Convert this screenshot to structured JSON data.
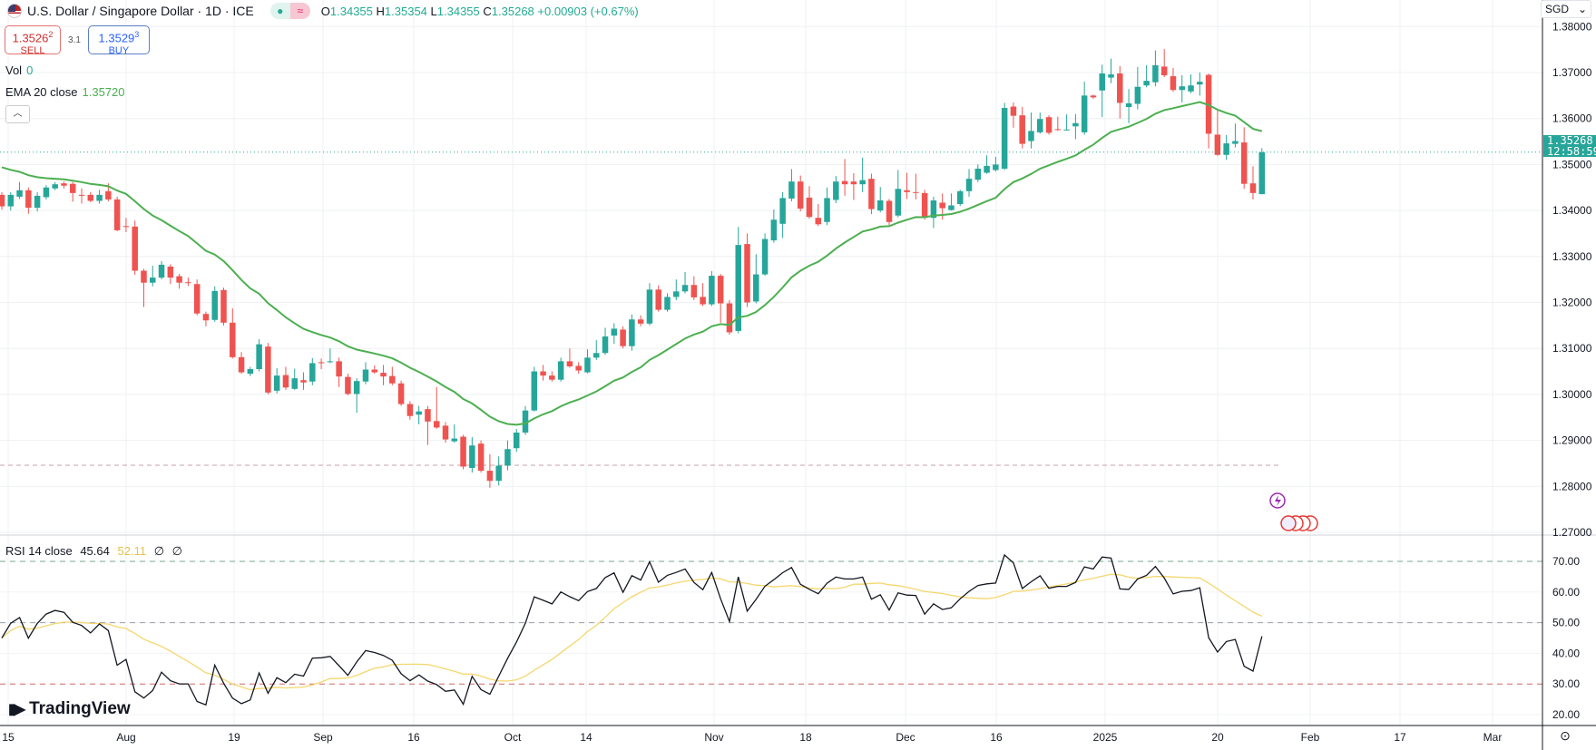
{
  "header": {
    "title": "U.S. Dollar / Singapore Dollar · 1D · ICE",
    "market_status_icon": "green-dot",
    "delay_icon": "≈",
    "ohlc": {
      "o_label": "O",
      "o": "1.34355",
      "h_label": "H",
      "h": "1.35354",
      "l_label": "L",
      "l": "1.34355",
      "c_label": "C",
      "c": "1.35268",
      "change": "+0.00903 (+0.67%)"
    }
  },
  "trade": {
    "sell_price": "1.3526",
    "sell_sup": "2",
    "sell_label": "SELL",
    "spread": "3.1",
    "buy_price": "1.3529",
    "buy_sup": "3",
    "buy_label": "BUY"
  },
  "legend": {
    "vol_label": "Vol",
    "vol_value": "0",
    "ema_label": "EMA 20 close",
    "ema_value": "1.35720",
    "collapse_icon": "chevron-up"
  },
  "rsi_legend": {
    "label": "RSI 14 close",
    "rsi_value": "45.64",
    "ma_value": "52.11",
    "extra1": "∅",
    "extra2": "∅"
  },
  "price_axis": {
    "currency": "SGD",
    "current_price": "1.35268",
    "countdown": "12:58:59"
  },
  "logo": "TradingView",
  "colors": {
    "up": "#26a69a",
    "down": "#ef5350",
    "ema": "#4caf50",
    "rsi": "#131722",
    "rsi_ma": "#f5d76e"
  },
  "chart_data": [
    {
      "type": "candlestick",
      "title": "U.S. Dollar / Singapore Dollar · 1D · ICE",
      "ylim": [
        1.27,
        1.38
      ],
      "yticks": [
        "1.38000",
        "1.37000",
        "1.36000",
        "1.35000",
        "1.34000",
        "1.33000",
        "1.32000",
        "1.31000",
        "1.30000",
        "1.29000",
        "1.28000",
        "1.27000"
      ],
      "xticks": [
        "15",
        "Aug",
        "19",
        "Sep",
        "16",
        "Oct",
        "14",
        "Nov",
        "18",
        "Dec",
        "16",
        "2025",
        "20",
        "Feb",
        "17",
        "Mar"
      ],
      "ohlc": [
        [
          1.3434,
          1.344,
          1.3402,
          1.3409
        ],
        [
          1.3409,
          1.344,
          1.34,
          1.3434
        ],
        [
          1.343,
          1.3462,
          1.3425,
          1.3444
        ],
        [
          1.3444,
          1.345,
          1.3393,
          1.3406
        ],
        [
          1.3406,
          1.344,
          1.3398,
          1.3432
        ],
        [
          1.3429,
          1.3455,
          1.3424,
          1.345
        ],
        [
          1.3448,
          1.3462,
          1.3444,
          1.3457
        ],
        [
          1.3459,
          1.3463,
          1.3448,
          1.3454
        ],
        [
          1.3458,
          1.3462,
          1.3419,
          1.3438
        ],
        [
          1.3434,
          1.3448,
          1.3415,
          1.3433
        ],
        [
          1.3434,
          1.344,
          1.3418,
          1.3421
        ],
        [
          1.3421,
          1.3445,
          1.3415,
          1.3434
        ],
        [
          1.3442,
          1.3459,
          1.342,
          1.3424
        ],
        [
          1.3424,
          1.343,
          1.3355,
          1.3357
        ],
        [
          1.3366,
          1.3384,
          1.3353,
          1.3365
        ],
        [
          1.3365,
          1.3378,
          1.326,
          1.3269
        ],
        [
          1.3269,
          1.3273,
          1.319,
          1.3243
        ],
        [
          1.3243,
          1.328,
          1.3235,
          1.3254
        ],
        [
          1.3254,
          1.329,
          1.325,
          1.3282
        ],
        [
          1.3278,
          1.3283,
          1.324,
          1.3254
        ],
        [
          1.3257,
          1.3262,
          1.323,
          1.3243
        ],
        [
          1.3244,
          1.3254,
          1.3236,
          1.3243
        ],
        [
          1.324,
          1.325,
          1.3172,
          1.3176
        ],
        [
          1.3175,
          1.318,
          1.3148,
          1.3161
        ],
        [
          1.3162,
          1.3235,
          1.3158,
          1.3225
        ],
        [
          1.3227,
          1.3232,
          1.315,
          1.3156
        ],
        [
          1.3156,
          1.3187,
          1.3078,
          1.3081
        ],
        [
          1.3081,
          1.3092,
          1.3045,
          1.3048
        ],
        [
          1.3045,
          1.306,
          1.304,
          1.3055
        ],
        [
          1.3055,
          1.312,
          1.305,
          1.3109
        ],
        [
          1.3104,
          1.3112,
          1.3,
          1.3004
        ],
        [
          1.3008,
          1.3057,
          1.3002,
          1.3041
        ],
        [
          1.3042,
          1.306,
          1.301,
          1.3015
        ],
        [
          1.3012,
          1.3056,
          1.301,
          1.3035
        ],
        [
          1.3031,
          1.3048,
          1.301,
          1.3026
        ],
        [
          1.3028,
          1.3079,
          1.302,
          1.3068
        ],
        [
          1.307,
          1.3078,
          1.3055,
          1.3069
        ],
        [
          1.3072,
          1.31,
          1.3068,
          1.3072
        ],
        [
          1.3072,
          1.308,
          1.3016,
          1.3039
        ],
        [
          1.3038,
          1.3045,
          1.2998,
          1.3001
        ],
        [
          1.3001,
          1.3035,
          1.296,
          1.3029
        ],
        [
          1.3028,
          1.307,
          1.3022,
          1.3054
        ],
        [
          1.3054,
          1.3063,
          1.3045,
          1.3048
        ],
        [
          1.3047,
          1.3064,
          1.302,
          1.3039
        ],
        [
          1.304,
          1.306,
          1.302,
          1.3024
        ],
        [
          1.3024,
          1.303,
          1.2975,
          1.2979
        ],
        [
          1.2979,
          1.2985,
          1.2945,
          1.2953
        ],
        [
          1.2956,
          1.2975,
          1.2935,
          1.2963
        ],
        [
          1.2968,
          1.2975,
          1.289,
          1.2941
        ],
        [
          1.2942,
          1.3016,
          1.2925,
          1.2928
        ],
        [
          1.2932,
          1.294,
          1.2895,
          1.2902
        ],
        [
          1.2898,
          1.2935,
          1.2895,
          1.2904
        ],
        [
          1.2908,
          1.2912,
          1.2837,
          1.2843
        ],
        [
          1.284,
          1.2907,
          1.283,
          1.2889
        ],
        [
          1.2893,
          1.29,
          1.283,
          1.2834
        ],
        [
          1.2834,
          1.287,
          1.2797,
          1.2812
        ],
        [
          1.2812,
          1.2865,
          1.2802,
          1.2845
        ],
        [
          1.2845,
          1.29,
          1.2835,
          1.2881
        ],
        [
          1.2883,
          1.2925,
          1.2875,
          1.2917
        ],
        [
          1.2917,
          1.2975,
          1.2912,
          1.2965
        ],
        [
          1.2965,
          1.306,
          1.2963,
          1.305
        ],
        [
          1.305,
          1.3064,
          1.303,
          1.3041
        ],
        [
          1.3041,
          1.305,
          1.3028,
          1.3032
        ],
        [
          1.3032,
          1.308,
          1.3028,
          1.3072
        ],
        [
          1.3072,
          1.31,
          1.3058,
          1.3061
        ],
        [
          1.3062,
          1.307,
          1.3045,
          1.3052
        ],
        [
          1.3048,
          1.3098,
          1.3046,
          1.308
        ],
        [
          1.308,
          1.3118,
          1.3075,
          1.309
        ],
        [
          1.309,
          1.3145,
          1.3086,
          1.3126
        ],
        [
          1.3128,
          1.3155,
          1.311,
          1.3143
        ],
        [
          1.3141,
          1.3148,
          1.31,
          1.3105
        ],
        [
          1.3105,
          1.3174,
          1.3095,
          1.3163
        ],
        [
          1.3163,
          1.3172,
          1.3148,
          1.3154
        ],
        [
          1.3154,
          1.3242,
          1.315,
          1.3228
        ],
        [
          1.3228,
          1.3237,
          1.318,
          1.3184
        ],
        [
          1.3184,
          1.322,
          1.318,
          1.3212
        ],
        [
          1.3212,
          1.325,
          1.3205,
          1.3224
        ],
        [
          1.3224,
          1.3266,
          1.322,
          1.3238
        ],
        [
          1.3238,
          1.3257,
          1.3205,
          1.3211
        ],
        [
          1.3212,
          1.3242,
          1.3192,
          1.3196
        ],
        [
          1.3196,
          1.3268,
          1.3192,
          1.3258
        ],
        [
          1.3258,
          1.3262,
          1.3156,
          1.3198
        ],
        [
          1.3198,
          1.3205,
          1.313,
          1.3135
        ],
        [
          1.3138,
          1.3364,
          1.3133,
          1.3325
        ],
        [
          1.3327,
          1.335,
          1.319,
          1.32
        ],
        [
          1.3202,
          1.3305,
          1.3198,
          1.3261
        ],
        [
          1.3261,
          1.335,
          1.3258,
          1.3338
        ],
        [
          1.3335,
          1.3402,
          1.333,
          1.338
        ],
        [
          1.3371,
          1.344,
          1.334,
          1.3427
        ],
        [
          1.3426,
          1.349,
          1.342,
          1.3463
        ],
        [
          1.3463,
          1.3476,
          1.3398,
          1.3404
        ],
        [
          1.3428,
          1.3453,
          1.3382,
          1.3386
        ],
        [
          1.3384,
          1.3414,
          1.3366,
          1.337
        ],
        [
          1.3375,
          1.345,
          1.3368,
          1.3427
        ],
        [
          1.3423,
          1.3475,
          1.3416,
          1.3463
        ],
        [
          1.3464,
          1.3512,
          1.3432,
          1.3457
        ],
        [
          1.3463,
          1.3481,
          1.3423,
          1.3457
        ],
        [
          1.3457,
          1.3515,
          1.344,
          1.3466
        ],
        [
          1.3469,
          1.348,
          1.3392,
          1.3403
        ],
        [
          1.34,
          1.3451,
          1.3396,
          1.3422
        ],
        [
          1.3421,
          1.3425,
          1.3368,
          1.3375
        ],
        [
          1.3389,
          1.3488,
          1.3385,
          1.3447
        ],
        [
          1.3444,
          1.3482,
          1.3425,
          1.344
        ],
        [
          1.344,
          1.348,
          1.3424,
          1.3439
        ],
        [
          1.3438,
          1.3445,
          1.338,
          1.3384
        ],
        [
          1.3384,
          1.343,
          1.3362,
          1.3422
        ],
        [
          1.3417,
          1.3437,
          1.338,
          1.3405
        ],
        [
          1.3401,
          1.3437,
          1.34,
          1.3411
        ],
        [
          1.3414,
          1.3445,
          1.341,
          1.3442
        ],
        [
          1.3442,
          1.349,
          1.343,
          1.3469
        ],
        [
          1.3467,
          1.35,
          1.3462,
          1.3491
        ],
        [
          1.3482,
          1.352,
          1.348,
          1.3497
        ],
        [
          1.3488,
          1.3517,
          1.3485,
          1.35
        ],
        [
          1.3491,
          1.3634,
          1.3488,
          1.3623
        ],
        [
          1.3626,
          1.3635,
          1.358,
          1.3606
        ],
        [
          1.3607,
          1.3625,
          1.3535,
          1.3545
        ],
        [
          1.3551,
          1.3613,
          1.3535,
          1.3573
        ],
        [
          1.357,
          1.3613,
          1.3567,
          1.3599
        ],
        [
          1.3603,
          1.3607,
          1.3565,
          1.3569
        ],
        [
          1.3577,
          1.3604,
          1.3573,
          1.3576
        ],
        [
          1.3576,
          1.3609,
          1.3574,
          1.3576
        ],
        [
          1.3583,
          1.361,
          1.3555,
          1.359
        ],
        [
          1.357,
          1.368,
          1.3565,
          1.365
        ],
        [
          1.365,
          1.3652,
          1.3643,
          1.3646
        ],
        [
          1.3661,
          1.3717,
          1.3603,
          1.3698
        ],
        [
          1.3689,
          1.373,
          1.3677,
          1.3696
        ],
        [
          1.3698,
          1.3714,
          1.36,
          1.3634
        ],
        [
          1.3625,
          1.3664,
          1.359,
          1.3633
        ],
        [
          1.3632,
          1.3712,
          1.362,
          1.3669
        ],
        [
          1.3672,
          1.3716,
          1.3668,
          1.3682
        ],
        [
          1.3679,
          1.3748,
          1.367,
          1.3716
        ],
        [
          1.3713,
          1.3751,
          1.369,
          1.3694
        ],
        [
          1.3692,
          1.371,
          1.3658,
          1.3662
        ],
        [
          1.3662,
          1.3694,
          1.3635,
          1.367
        ],
        [
          1.3659,
          1.3696,
          1.3655,
          1.3672
        ],
        [
          1.3674,
          1.37,
          1.365,
          1.368
        ],
        [
          1.3695,
          1.3698,
          1.3535,
          1.3567
        ],
        [
          1.3565,
          1.3617,
          1.3519,
          1.3521
        ],
        [
          1.3521,
          1.3564,
          1.351,
          1.3546
        ],
        [
          1.3545,
          1.3589,
          1.3537,
          1.3551
        ],
        [
          1.3548,
          1.3581,
          1.3447,
          1.3458
        ],
        [
          1.3459,
          1.3496,
          1.3424,
          1.3438
        ],
        [
          1.34355,
          1.35354,
          1.34355,
          1.35268
        ]
      ],
      "ema_period": 20,
      "ema_start": 1.3503,
      "current_price": 1.35268,
      "reference_line": 1.2846
    },
    {
      "type": "line",
      "title": "RSI 14 close",
      "ylim": [
        15,
        80
      ],
      "yticks": [
        "70.00",
        "60.00",
        "50.00",
        "40.00",
        "30.00",
        "20.00"
      ],
      "levels": {
        "upper": 70,
        "middle": 50,
        "lower": 30
      },
      "rsi_period": 14,
      "ma_period": 14
    }
  ]
}
